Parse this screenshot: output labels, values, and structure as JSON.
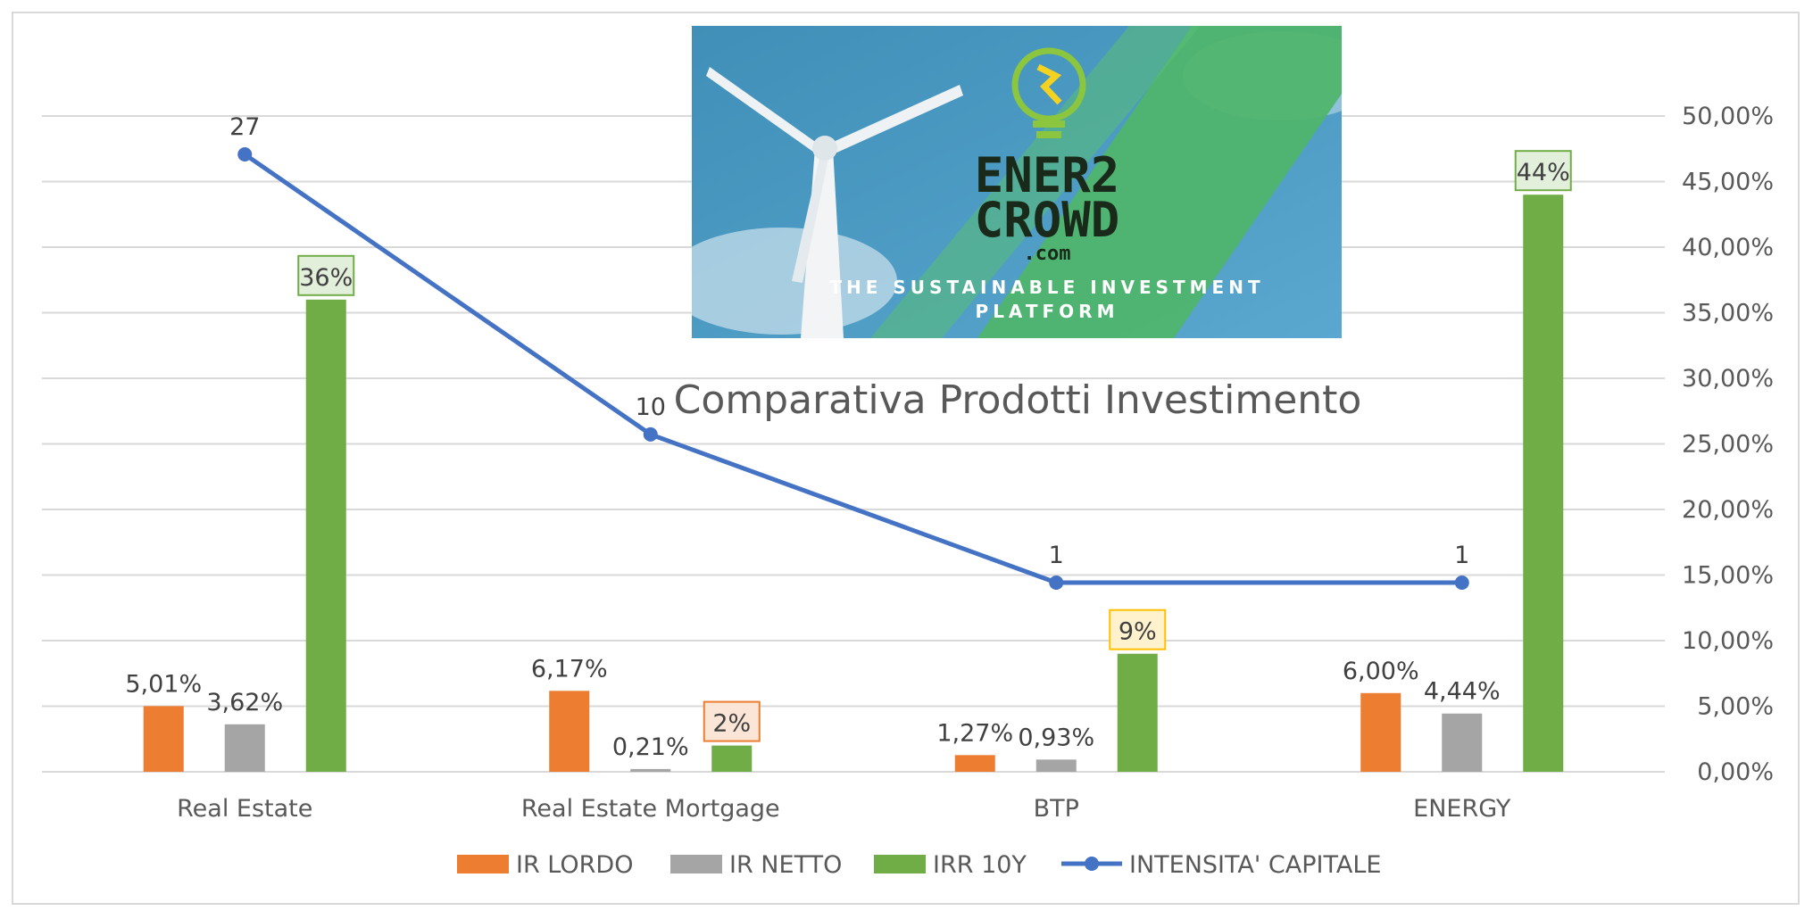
{
  "chart_data": {
    "type": "bar",
    "title": "Comparativa Prodotti Investimento",
    "categories": [
      "Real Estate",
      "Real Estate Mortgage",
      "BTP",
      "ENERGY"
    ],
    "series": [
      {
        "name": "IR LORDO",
        "kind": "bar",
        "color": "#ed7d31",
        "values": [
          5.01,
          6.17,
          1.27,
          6.0
        ],
        "labels": [
          "5,01%",
          "6,17%",
          "1,27%",
          "6,00%"
        ]
      },
      {
        "name": "IR NETTO",
        "kind": "bar",
        "color": "#a5a5a5",
        "values": [
          3.62,
          0.21,
          0.93,
          4.44
        ],
        "labels": [
          "3,62%",
          "0,21%",
          "0,93%",
          "4,44%"
        ]
      },
      {
        "name": "IRR 10Y",
        "kind": "bar",
        "color": "#70ad47",
        "values": [
          36,
          2,
          9,
          44
        ],
        "labels": [
          "36%",
          "2%",
          "9%",
          "44%"
        ],
        "label_box_fills": [
          "#e2efda",
          "#fbe5d6",
          "#fff2cc",
          "#e2efda"
        ],
        "label_box_strokes": [
          "#70ad47",
          "#ed7d31",
          "#ffc000",
          "#70ad47"
        ]
      },
      {
        "name": "INTENSITA' CAPITALE",
        "kind": "line",
        "color": "#4472c4",
        "values": [
          27,
          10,
          1,
          1
        ],
        "labels": [
          "27",
          "10",
          "1",
          "1"
        ]
      }
    ],
    "y_axis": {
      "position": "right",
      "ylim": [
        0,
        50
      ],
      "ticks": [
        0,
        5,
        10,
        15,
        20,
        25,
        30,
        35,
        40,
        45,
        50
      ],
      "tick_labels": [
        "0,00%",
        "5,00%",
        "10,00%",
        "15,00%",
        "20,00%",
        "25,00%",
        "30,00%",
        "35,00%",
        "40,00%",
        "45,00%",
        "50,00%"
      ]
    },
    "grid": true,
    "legend": {
      "position": "bottom"
    }
  },
  "logo": {
    "brand_line1": "ENER2",
    "brand_line2": "CROWD",
    "domain": ".com",
    "tagline_line1": "THE SUSTAINABLE INVESTMENT",
    "tagline_line2": "PLATFORM"
  },
  "colors": {
    "grid": "#d9d9d9",
    "text": "#595959"
  }
}
